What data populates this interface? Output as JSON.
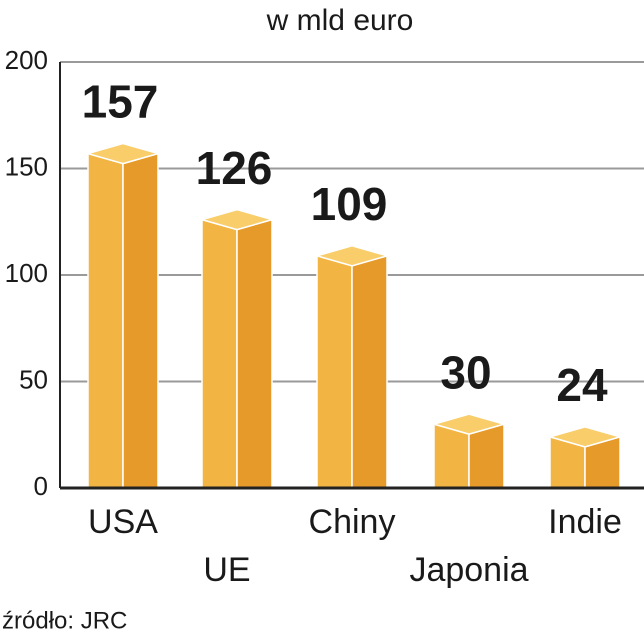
{
  "chart_data": {
    "type": "bar",
    "title": "w mld euro",
    "categories": [
      "USA",
      "UE",
      "Chiny",
      "Japonia",
      "Indie"
    ],
    "values": [
      157,
      126,
      109,
      30,
      24
    ],
    "color": "#f2b544",
    "ylim": [
      0,
      200
    ],
    "yticks": [
      0,
      50,
      100,
      150,
      200
    ],
    "grid": true,
    "source": "źródło: JRC"
  }
}
